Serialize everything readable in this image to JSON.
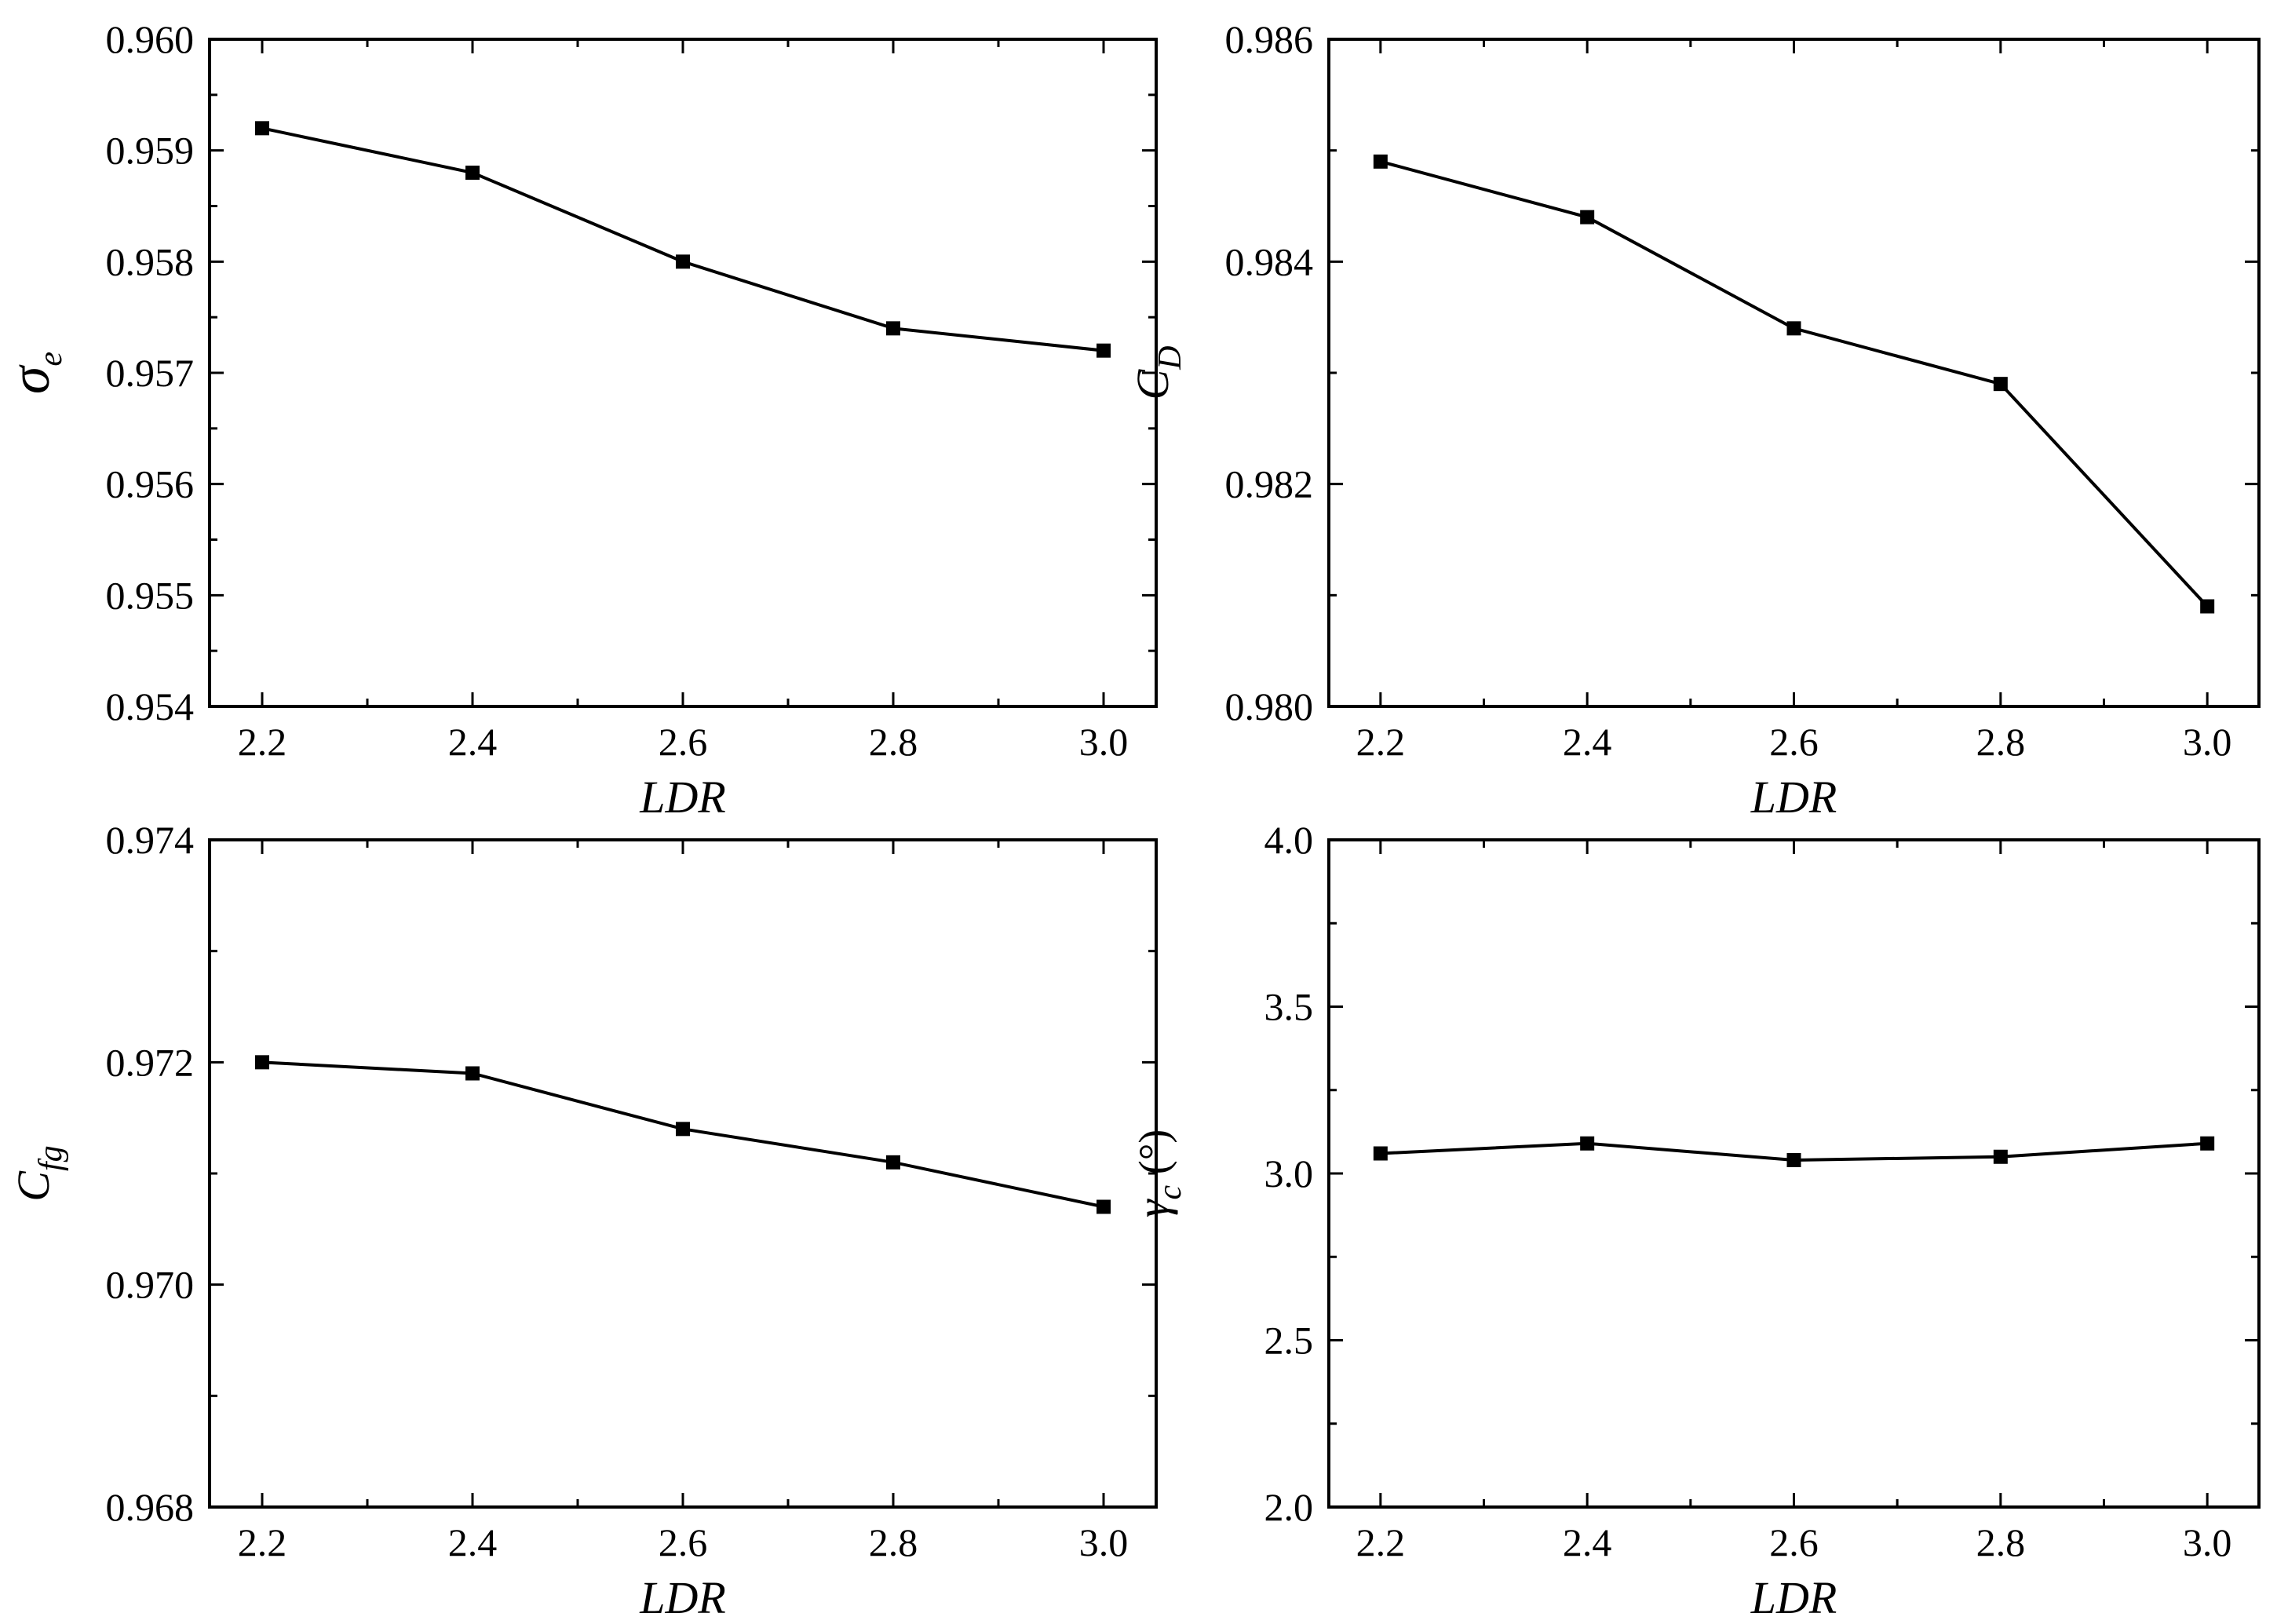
{
  "chart_data": [
    {
      "type": "line",
      "xlabel": "LDR",
      "ylabel": {
        "base": "σ",
        "sub": "e",
        "unit": ""
      },
      "x": [
        2.2,
        2.4,
        2.6,
        2.8,
        3.0
      ],
      "xticks": [
        "2.2",
        "2.4",
        "2.6",
        "2.8",
        "3.0"
      ],
      "xlim": [
        2.15,
        3.05
      ],
      "ylim": [
        0.954,
        0.96
      ],
      "yticks": [
        "0.954",
        "0.955",
        "0.956",
        "0.957",
        "0.958",
        "0.959",
        "0.960"
      ],
      "series": [
        {
          "values": [
            0.9592,
            0.9588,
            0.958,
            0.9574,
            0.9572
          ]
        }
      ],
      "marker": "square",
      "grid": false
    },
    {
      "type": "line",
      "xlabel": "LDR",
      "ylabel": {
        "base": "C",
        "sub": "D",
        "unit": ""
      },
      "x": [
        2.2,
        2.4,
        2.6,
        2.8,
        3.0
      ],
      "xticks": [
        "2.2",
        "2.4",
        "2.6",
        "2.8",
        "3.0"
      ],
      "xlim": [
        2.15,
        3.05
      ],
      "ylim": [
        0.98,
        0.986
      ],
      "yticks": [
        "0.980",
        "0.982",
        "0.984",
        "0.986"
      ],
      "series": [
        {
          "values": [
            0.9849,
            0.9844,
            0.9834,
            0.9829,
            0.9809
          ]
        }
      ],
      "marker": "square",
      "grid": false
    },
    {
      "type": "line",
      "xlabel": "LDR",
      "ylabel": {
        "base": "C",
        "sub": "fg",
        "unit": ""
      },
      "x": [
        2.2,
        2.4,
        2.6,
        2.8,
        3.0
      ],
      "xticks": [
        "2.2",
        "2.4",
        "2.6",
        "2.8",
        "3.0"
      ],
      "xlim": [
        2.15,
        3.05
      ],
      "ylim": [
        0.968,
        0.974
      ],
      "yticks": [
        "0.968",
        "0.970",
        "0.972",
        "0.974"
      ],
      "series": [
        {
          "values": [
            0.972,
            0.9719,
            0.9714,
            0.9711,
            0.9707
          ]
        }
      ],
      "marker": "square",
      "grid": false
    },
    {
      "type": "line",
      "xlabel": "LDR",
      "ylabel": {
        "base": "γ",
        "sub": "c",
        "unit": " (°)"
      },
      "x": [
        2.2,
        2.4,
        2.6,
        2.8,
        3.0
      ],
      "xticks": [
        "2.2",
        "2.4",
        "2.6",
        "2.8",
        "3.0"
      ],
      "xlim": [
        2.15,
        3.05
      ],
      "ylim": [
        2.0,
        4.0
      ],
      "yticks": [
        "2.0",
        "2.5",
        "3.0",
        "3.5",
        "4.0"
      ],
      "series": [
        {
          "values": [
            3.06,
            3.09,
            3.04,
            3.05,
            3.09
          ]
        }
      ],
      "marker": "square",
      "grid": false
    }
  ]
}
